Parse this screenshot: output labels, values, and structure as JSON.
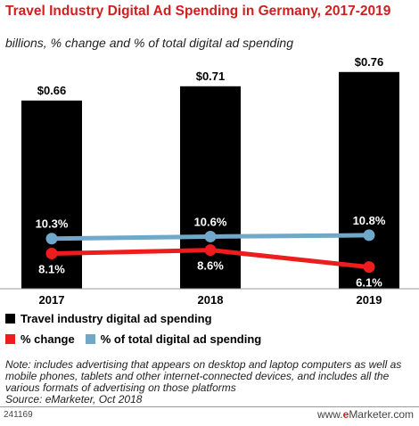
{
  "title": "Travel Industry Digital Ad Spending in Germany, 2017-2019",
  "subtitle": "billions, % change and % of total digital ad spending",
  "legend": {
    "bar": "Travel industry digital ad spending",
    "change": "% change",
    "share": "% of total digital ad spending"
  },
  "colors": {
    "bar": "#000000",
    "change": "#ee1c1c",
    "share": "#6fa8c8",
    "title": "#d11e1e"
  },
  "note": "Note: includes advertising that appears on desktop and laptop computers as well as mobile phones, tablets and other internet-connected devices, and includes all the various formats of advertising on those platforms",
  "source": "Source: eMarketer, Oct 2018",
  "footer": {
    "id": "241169",
    "brand_prefix": "www.",
    "brand_bold": "e",
    "brand_rest": "Marketer.com"
  },
  "chart_data": {
    "type": "bar",
    "categories": [
      "2017",
      "2018",
      "2019"
    ],
    "series": [
      {
        "name": "Travel industry digital ad spending",
        "type": "bar",
        "values": [
          0.66,
          0.71,
          0.76
        ],
        "labels": [
          "$0.66",
          "$0.71",
          "$0.76"
        ]
      },
      {
        "name": "% change",
        "type": "line",
        "values": [
          8.1,
          8.6,
          6.1
        ],
        "labels": [
          "8.1%",
          "8.6%",
          "6.1%"
        ]
      },
      {
        "name": "% of total digital ad spending",
        "type": "line",
        "values": [
          10.3,
          10.6,
          10.8
        ],
        "labels": [
          "10.3%",
          "10.6%",
          "10.8%"
        ]
      }
    ],
    "grid": false,
    "legend_position": "bottom"
  }
}
